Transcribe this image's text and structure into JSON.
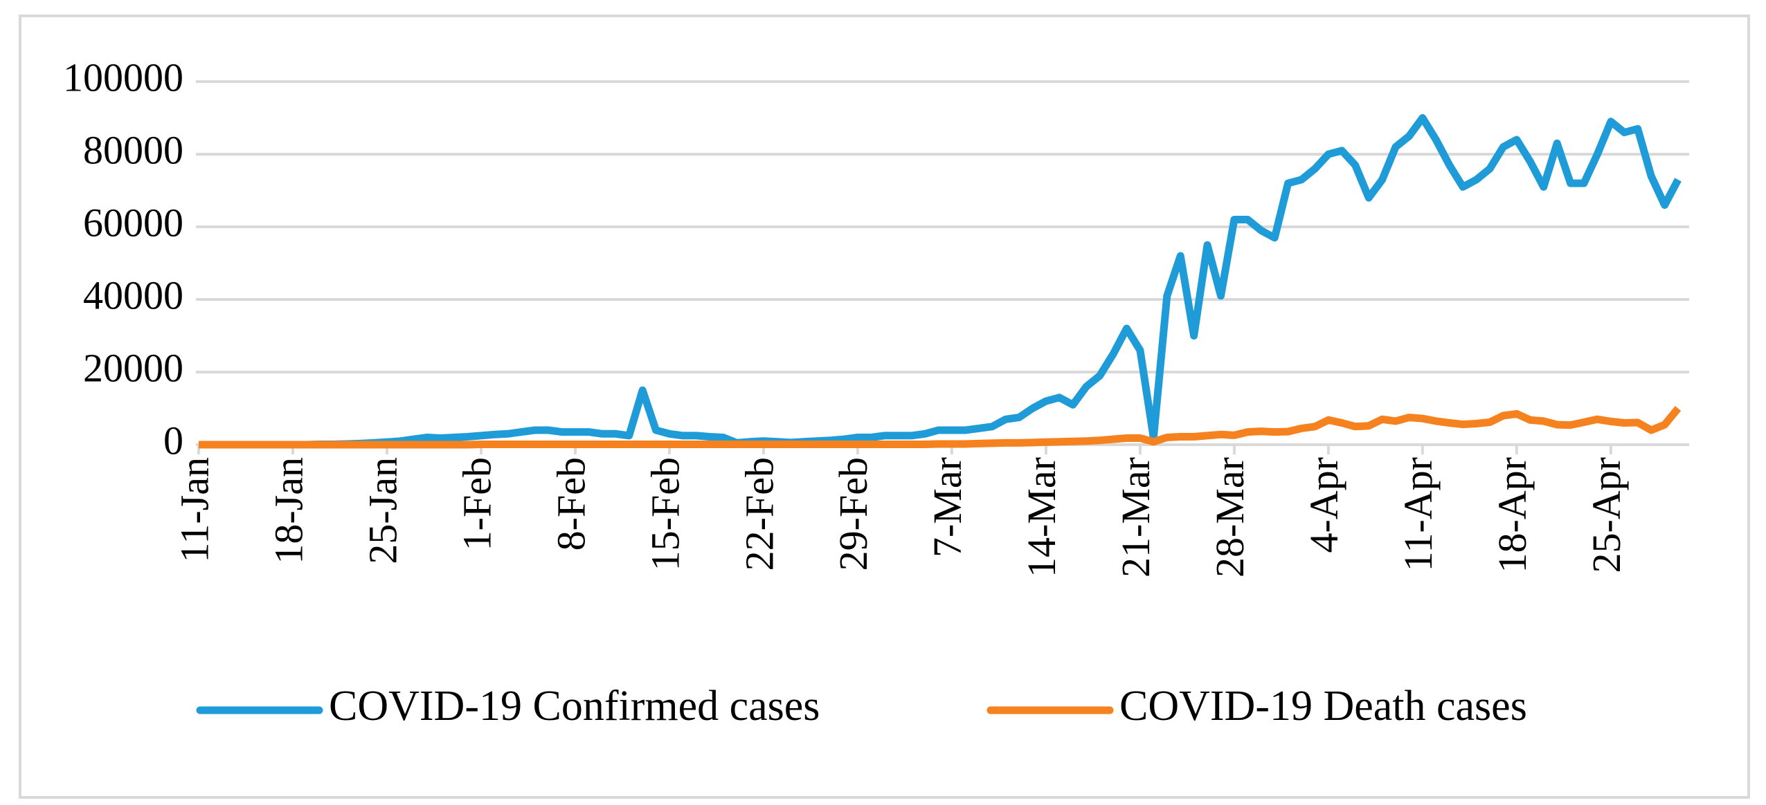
{
  "chart_data": {
    "type": "line",
    "categories": [
      "11-Jan",
      null,
      null,
      null,
      null,
      null,
      null,
      "18-Jan",
      null,
      null,
      null,
      null,
      null,
      null,
      "25-Jan",
      null,
      null,
      null,
      null,
      null,
      null,
      "1-Feb",
      null,
      null,
      null,
      null,
      null,
      null,
      "8-Feb",
      null,
      null,
      null,
      null,
      null,
      null,
      "15-Feb",
      null,
      null,
      null,
      null,
      null,
      null,
      "22-Feb",
      null,
      null,
      null,
      null,
      null,
      null,
      "29-Feb",
      null,
      null,
      null,
      null,
      null,
      null,
      "7-Mar",
      null,
      null,
      null,
      null,
      null,
      null,
      "14-Mar",
      null,
      null,
      null,
      null,
      null,
      null,
      "21-Mar",
      null,
      null,
      null,
      null,
      null,
      null,
      "28-Mar",
      null,
      null,
      null,
      null,
      null,
      null,
      "4-Apr",
      null,
      null,
      null,
      null,
      null,
      null,
      "11-Apr",
      null,
      null,
      null,
      null,
      null,
      null,
      "18-Apr",
      null,
      null,
      null,
      null,
      null,
      null,
      "25-Apr",
      null,
      null,
      null,
      null,
      null
    ],
    "series": [
      {
        "name": "COVID-19 Confirmed cases",
        "color": "#1f9cd8",
        "values": [
          0,
          0,
          0,
          0,
          0,
          0,
          0,
          0,
          0,
          100,
          100,
          200,
          300,
          500,
          700,
          1000,
          1500,
          2000,
          1800,
          2000,
          2200,
          2500,
          2800,
          3000,
          3500,
          4000,
          4000,
          3500,
          3500,
          3500,
          3000,
          3000,
          2500,
          15000,
          4000,
          3000,
          2500,
          2500,
          2200,
          2000,
          500,
          800,
          1000,
          800,
          600,
          800,
          1000,
          1200,
          1500,
          2000,
          2000,
          2500,
          2500,
          2500,
          3000,
          4000,
          4000,
          4000,
          4500,
          5000,
          7000,
          7500,
          10000,
          12000,
          13000,
          11000,
          16000,
          19000,
          25000,
          32000,
          26000,
          2000,
          41000,
          52000,
          30000,
          55000,
          41000,
          62000,
          62000,
          59000,
          57000,
          72000,
          73000,
          76000,
          80000,
          81000,
          77000,
          68000,
          73000,
          82000,
          85000,
          90000,
          84000,
          77000,
          71000,
          73000,
          76000,
          82000,
          84000,
          78000,
          71000,
          83000,
          72000,
          72000,
          80000,
          89000,
          86000,
          87000,
          74000,
          66000,
          73000
        ]
      },
      {
        "name": "COVID-19 Death cases",
        "color": "#f5821f",
        "values": [
          0,
          0,
          0,
          0,
          0,
          0,
          0,
          0,
          0,
          0,
          0,
          0,
          0,
          0,
          0,
          0,
          0,
          0,
          0,
          0,
          0,
          100,
          100,
          100,
          100,
          100,
          100,
          100,
          100,
          100,
          100,
          100,
          100,
          100,
          100,
          100,
          100,
          100,
          100,
          100,
          100,
          100,
          100,
          100,
          100,
          100,
          100,
          100,
          100,
          100,
          100,
          100,
          100,
          100,
          100,
          200,
          200,
          200,
          300,
          400,
          500,
          500,
          600,
          700,
          800,
          900,
          1000,
          1200,
          1500,
          1800,
          1800,
          800,
          2000,
          2200,
          2200,
          2500,
          2800,
          2600,
          3500,
          3700,
          3500,
          3600,
          4500,
          5000,
          6800,
          6000,
          5000,
          5200,
          7000,
          6500,
          7500,
          7200,
          6500,
          6000,
          5600,
          5800,
          6200,
          8000,
          8500,
          6800,
          6500,
          5500,
          5400,
          6200,
          7000,
          6400,
          6000,
          6100,
          4000,
          5500,
          10000
        ]
      }
    ],
    "ylim": [
      0,
      100000
    ],
    "yticks": [
      0,
      20000,
      40000,
      60000,
      80000,
      100000
    ],
    "grid": true,
    "legend": "bottom"
  }
}
